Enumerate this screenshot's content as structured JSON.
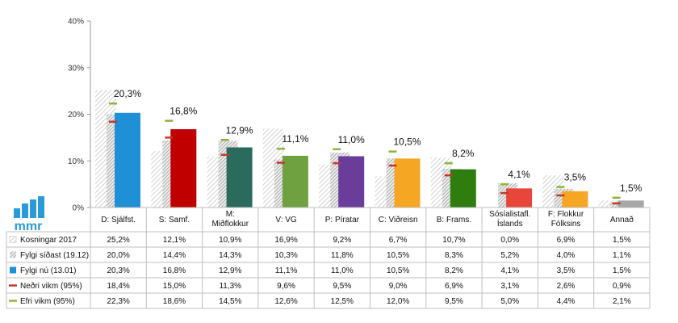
{
  "chart_data": {
    "type": "bar",
    "ylim": [
      0,
      40
    ],
    "y_ticks": [
      "0%",
      "10%",
      "20%",
      "30%",
      "40%"
    ],
    "grid": false,
    "legend": "table-left",
    "categories": [
      [
        "D: Sjálfst."
      ],
      [
        "S: Samf."
      ],
      [
        "M:",
        "Miðflokkur"
      ],
      [
        "V: VG"
      ],
      [
        "P: Píratar"
      ],
      [
        "C: Viðreisn"
      ],
      [
        "B: Frams."
      ],
      [
        "Sósíalistafl.",
        "Íslands"
      ],
      [
        "F: Flokkur",
        "Fólksins"
      ],
      [
        "Annað"
      ]
    ],
    "colors": [
      "#1F8FD6",
      "#C00000",
      "#2A6B5E",
      "#6FA140",
      "#6A3D9A",
      "#F5A623",
      "#2E7D0E",
      "#E8463A",
      "#F5A623",
      "#A6A6A6"
    ],
    "series": [
      {
        "name": "Kosningar 2017",
        "kind": "hatch-light",
        "values": [
          25.2,
          12.1,
          10.9,
          16.9,
          9.2,
          6.7,
          10.7,
          0.0,
          6.9,
          1.5
        ],
        "labels": [
          "25,2%",
          "12,1%",
          "10,9%",
          "16,9%",
          "9,2%",
          "6,7%",
          "10,7%",
          "0,0%",
          "6,9%",
          "1,5%"
        ]
      },
      {
        "name": "Fylgi síðast (19.12)",
        "kind": "hatch-dark",
        "values": [
          20.0,
          14.4,
          14.3,
          10.3,
          11.8,
          10.5,
          8.3,
          5.2,
          4.0,
          1.1
        ],
        "labels": [
          "20,0%",
          "14,4%",
          "14,3%",
          "10,3%",
          "11,8%",
          "10,5%",
          "8,3%",
          "5,2%",
          "4,0%",
          "1,1%"
        ]
      },
      {
        "name": "Fylgi nú (13.01)",
        "kind": "solid",
        "values": [
          20.3,
          16.8,
          12.9,
          11.1,
          11.0,
          10.5,
          8.2,
          4.1,
          3.5,
          1.5
        ],
        "labels": [
          "20,3%",
          "16,8%",
          "12,9%",
          "11,1%",
          "11,0%",
          "10,5%",
          "8,2%",
          "4,1%",
          "3,5%",
          "1,5%"
        ]
      },
      {
        "name": "Neðri vikm (95%)",
        "kind": "marker",
        "color": "#C0392B",
        "values": [
          18.4,
          15.0,
          11.3,
          9.6,
          9.5,
          9.0,
          6.9,
          3.1,
          2.6,
          0.9
        ],
        "labels": [
          "18,4%",
          "15,0%",
          "11,3%",
          "9,6%",
          "9,5%",
          "9,0%",
          "6,9%",
          "3,1%",
          "2,6%",
          "0,9%"
        ]
      },
      {
        "name": "Efri vikm (95%)",
        "kind": "marker",
        "color": "#8DB33A",
        "values": [
          22.3,
          18.6,
          14.5,
          12.6,
          12.5,
          12.0,
          9.5,
          5.0,
          4.4,
          2.1
        ],
        "labels": [
          "22,3%",
          "18,6%",
          "14,5%",
          "12,6%",
          "12,5%",
          "12,0%",
          "9,5%",
          "5,0%",
          "4,4%",
          "2,1%"
        ]
      }
    ]
  },
  "logo": {
    "text": "mmr",
    "color": "#2A9BD8"
  }
}
